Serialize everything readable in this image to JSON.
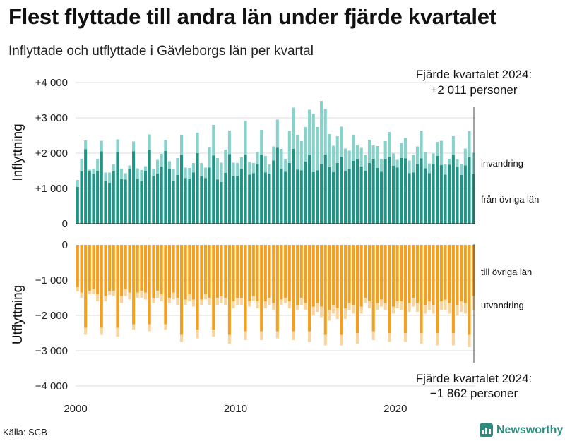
{
  "title": "Flest flyttade till andra län under fjärde kvartalet",
  "subtitle": "Inflyttade och utflyttade i Gävleborgs län per kvartal",
  "source": "Källa: SCB",
  "brand": "Newsworthy",
  "colors": {
    "in_domestic": "#1f9585",
    "in_immigration": "#86d3cb",
    "out_domestic": "#f5a01c",
    "out_emigration": "#fad49a"
  },
  "chart_data": {
    "type": "bar",
    "stacked": true,
    "x_range": [
      2000,
      2025
    ],
    "x_ticks": [
      {
        "value": 2000,
        "label": "2000"
      },
      {
        "value": 2010,
        "label": "2010"
      },
      {
        "value": 2020,
        "label": "2020"
      }
    ],
    "upper_panel": {
      "ylabel": "Inflyttning",
      "ylim": [
        0,
        4000
      ],
      "y_ticks": [
        {
          "value": 0,
          "label": "0"
        },
        {
          "value": 1000,
          "label": "+1 000"
        },
        {
          "value": 2000,
          "label": "+2 000"
        },
        {
          "value": 3000,
          "label": "+3 000"
        },
        {
          "value": 4000,
          "label": "+4 000"
        }
      ],
      "series": [
        {
          "name": "från övriga län",
          "values": [
            1040,
            1480,
            2110,
            1480,
            1400,
            1500,
            2050,
            1220,
            1150,
            1480,
            2020,
            1260,
            1250,
            1540,
            2050,
            1270,
            1200,
            1500,
            2080,
            1350,
            1420,
            1620,
            2060,
            1550,
            1220,
            1380,
            1950,
            1290,
            1280,
            1450,
            2000,
            1340,
            1290,
            1590,
            1930,
            1250,
            1180,
            1440,
            1970,
            1350,
            1360,
            1550,
            1960,
            1390,
            1430,
            1690,
            1950,
            1450,
            1420,
            1790,
            2150,
            1560,
            1470,
            1720,
            2120,
            1530,
            1510,
            1760,
            1960,
            1460,
            1510,
            1700,
            1960,
            1600,
            1460,
            1720,
            1900,
            1490,
            1540,
            1780,
            1820,
            1620,
            1500,
            1720,
            1840,
            1580,
            1470,
            1820,
            1890,
            1640,
            1590,
            1860,
            1850,
            1430,
            1450,
            1690,
            1850,
            1570,
            1430,
            1690,
            1920,
            1660,
            1390,
            1670,
            1940,
            1610,
            1380,
            1650,
            1880,
            1400
          ]
        },
        {
          "name": "invandring",
          "values": [
            200,
            360,
            250,
            50,
            150,
            340,
            300,
            230,
            300,
            210,
            370,
            300,
            180,
            110,
            280,
            300,
            320,
            130,
            450,
            200,
            390,
            360,
            320,
            220,
            320,
            480,
            560,
            300,
            300,
            270,
            580,
            380,
            300,
            580,
            870,
            610,
            550,
            660,
            670,
            380,
            360,
            340,
            950,
            360,
            290,
            350,
            710,
            470,
            260,
            400,
            800,
            560,
            370,
            900,
            1170,
            990,
            830,
            980,
            1270,
            1640,
            1230,
            1780,
            1290,
            940,
            750,
            760,
            850,
            640,
            530,
            730,
            420,
            530,
            450,
            660,
            380,
            620,
            350,
            520,
            710,
            350,
            220,
            430,
            580,
            360,
            510,
            500,
            790,
            450,
            280,
            300,
            400,
            690,
            300,
            170,
            540,
            210,
            320,
            480,
            750,
            610
          ]
        }
      ]
    },
    "lower_panel": {
      "ylabel": "Utflyttning",
      "ylim": [
        -4000,
        0
      ],
      "y_ticks": [
        {
          "value": 0,
          "label": "0"
        },
        {
          "value": -1000,
          "label": "−1 000"
        },
        {
          "value": -2000,
          "label": "−2 000"
        },
        {
          "value": -3000,
          "label": "−3 000"
        },
        {
          "value": -4000,
          "label": "−4 000"
        }
      ],
      "series": [
        {
          "name": "till övriga län",
          "values": [
            -1200,
            -1350,
            -2350,
            -1300,
            -1250,
            -1400,
            -2350,
            -1450,
            -1300,
            -1300,
            -2350,
            -1450,
            -1250,
            -1350,
            -2250,
            -1350,
            -1300,
            -1350,
            -2250,
            -1500,
            -1300,
            -1400,
            -2250,
            -1500,
            -1350,
            -1500,
            -2550,
            -1550,
            -1400,
            -1550,
            -2400,
            -1550,
            -1400,
            -1500,
            -2400,
            -1500,
            -1450,
            -1500,
            -2550,
            -1600,
            -1500,
            -1500,
            -2450,
            -1600,
            -1450,
            -1600,
            -2450,
            -1600,
            -1500,
            -1650,
            -2450,
            -1550,
            -1500,
            -1600,
            -2450,
            -1700,
            -1500,
            -1650,
            -2450,
            -1750,
            -1650,
            -1750,
            -2550,
            -1850,
            -1700,
            -1800,
            -2550,
            -1800,
            -1650,
            -1700,
            -2500,
            -1750,
            -1500,
            -1600,
            -2450,
            -1650,
            -1550,
            -1650,
            -2500,
            -1750,
            -1600,
            -1600,
            -2500,
            -1650,
            -1500,
            -1650,
            -2500,
            -1700,
            -1600,
            -1700,
            -2500,
            -1600,
            -1550,
            -1650,
            -2500,
            -1700,
            -1600,
            -1650,
            -2550,
            -1450
          ]
        },
        {
          "name": "utvandring",
          "values": [
            -120,
            -150,
            -200,
            -100,
            -150,
            -200,
            -200,
            -150,
            -120,
            -150,
            -250,
            -200,
            -200,
            -200,
            -150,
            -150,
            -200,
            -200,
            -200,
            -150,
            -200,
            -200,
            -150,
            -150,
            -200,
            -200,
            -200,
            -150,
            -200,
            -200,
            -250,
            -150,
            -150,
            -200,
            -200,
            -200,
            -200,
            -200,
            -250,
            -200,
            -200,
            -200,
            -250,
            -150,
            -150,
            -200,
            -250,
            -200,
            -200,
            -200,
            -200,
            -150,
            -150,
            -200,
            -250,
            -150,
            -200,
            -200,
            -300,
            -250,
            -250,
            -300,
            -300,
            -300,
            -250,
            -300,
            -300,
            -300,
            -200,
            -250,
            -300,
            -200,
            -150,
            -200,
            -250,
            -200,
            -200,
            -200,
            -250,
            -200,
            -200,
            -250,
            -250,
            -250,
            -250,
            -250,
            -300,
            -250,
            -250,
            -250,
            -350,
            -250,
            -300,
            -300,
            -350,
            -300,
            -300,
            -300,
            -350,
            -412
          ]
        }
      ]
    },
    "legend": {
      "upper": [
        "invandring",
        "från övriga län"
      ],
      "lower": [
        "till övriga län",
        "utvandring"
      ]
    },
    "annotations": [
      {
        "line1": "Fjärde kvartalet 2024:",
        "line2": "+2 011 personer"
      },
      {
        "line1": "Fjärde kvartalet 2024:",
        "line2": "−1 862 personer"
      }
    ]
  }
}
